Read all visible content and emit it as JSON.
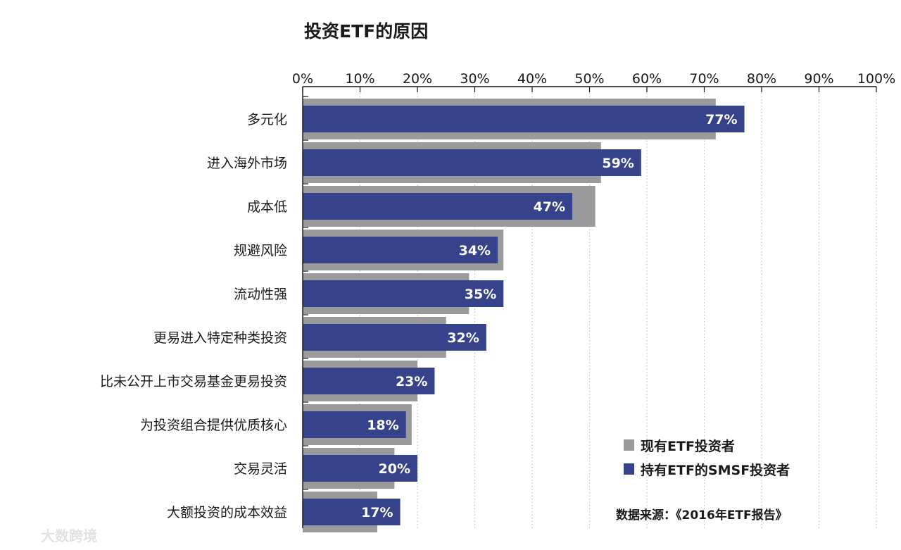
{
  "chart_data": {
    "type": "bar",
    "orientation": "horizontal",
    "title": "投资ETF的原因",
    "xlim": [
      0,
      100
    ],
    "x_ticks": [
      "0%",
      "10%",
      "20%",
      "30%",
      "40%",
      "50%",
      "60%",
      "70%",
      "80%",
      "90%",
      "100%"
    ],
    "grid": true,
    "legend_position": "bottom-right",
    "categories": [
      "多元化",
      "进入海外市场",
      "成本低",
      "规避风险",
      "流动性强",
      "更易进入特定种类投资",
      "比未公开上市交易基金更易投资",
      "为投资组合提供优质核心",
      "交易灵活",
      "大额投资的成本效益"
    ],
    "series": [
      {
        "name": "现有ETF投资者",
        "values": [
          72,
          52,
          51,
          35,
          29,
          25,
          20,
          19,
          16,
          13
        ]
      },
      {
        "name": "持有ETF的SMSF投资者",
        "values": [
          77,
          59,
          47,
          34,
          35,
          32,
          23,
          18,
          20,
          17
        ]
      }
    ],
    "data_labels": [
      "77%",
      "59%",
      "47%",
      "34%",
      "35%",
      "32%",
      "23%",
      "18%",
      "20%",
      "17%"
    ],
    "source": "数据来源：《2016年ETF报告》"
  },
  "colors": {
    "existing": "#9a9a9c",
    "smsf": "#36428a",
    "grid": "#c9b9d2",
    "axis": "#111111"
  },
  "watermark": "大数跨境"
}
